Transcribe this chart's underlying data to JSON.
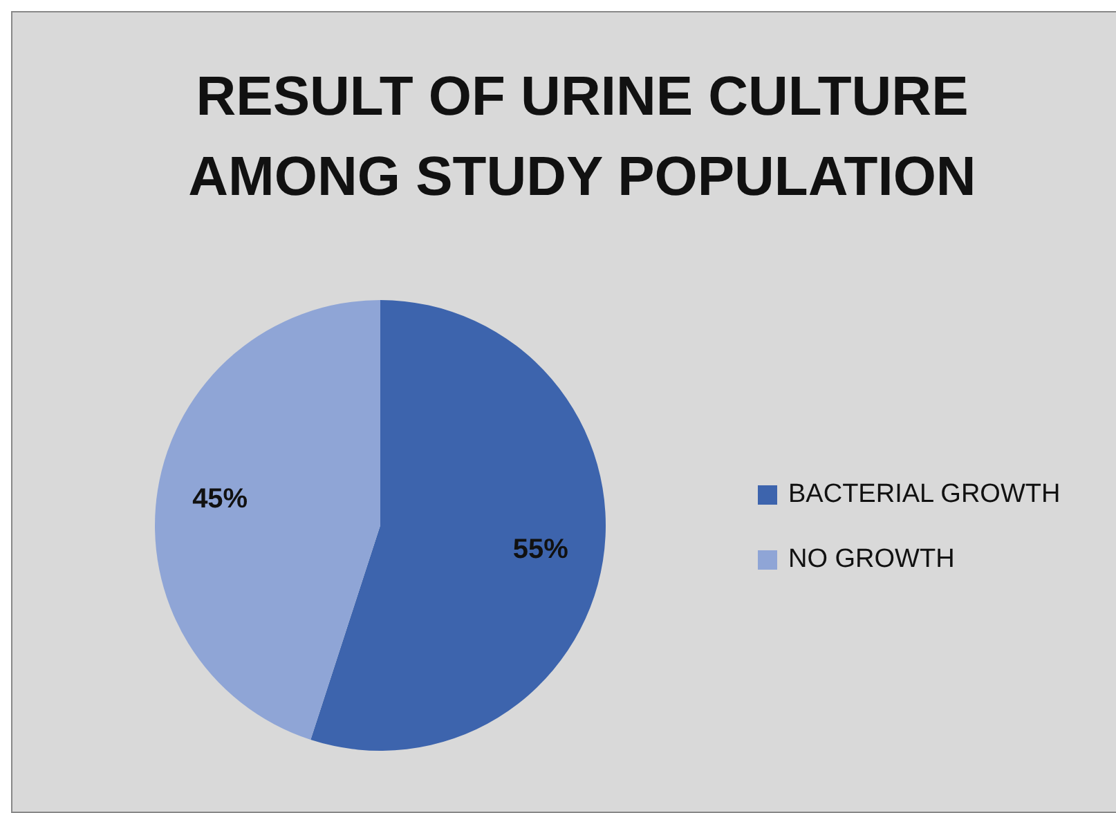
{
  "chart_data": {
    "type": "pie",
    "title": "RESULT OF URINE CULTURE AMONG STUDY POPULATION",
    "categories": [
      "BACTERIAL GROWTH",
      "NO GROWTH"
    ],
    "values": [
      55,
      45
    ],
    "colors": [
      "#3d64ad",
      "#8fa5d6"
    ],
    "value_labels": [
      "55%",
      "45%"
    ],
    "legend": "right"
  }
}
